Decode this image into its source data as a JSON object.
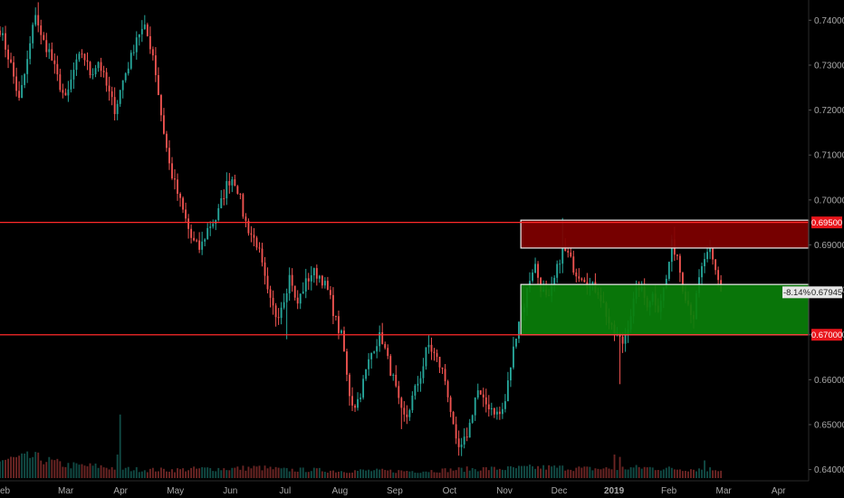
{
  "chart_data": {
    "type": "candlestick",
    "x_ticks": [
      "eb",
      "Mar",
      "Apr",
      "May",
      "Jun",
      "Jul",
      "Aug",
      "Sep",
      "Oct",
      "Nov",
      "Dec",
      "2019",
      "Feb",
      "Mar",
      "Apr"
    ],
    "y_ticks": [
      "0.74000",
      "0.73000",
      "0.72000",
      "0.71000",
      "0.70000",
      "0.69000",
      "0.68000",
      "0.67000",
      "0.66000",
      "0.65000",
      "0.64000"
    ],
    "ylim": [
      0.6375,
      0.7445
    ],
    "x_months": [
      -0.2,
      1,
      2,
      3,
      4,
      5,
      6,
      7,
      8,
      9,
      10,
      11,
      12,
      13,
      14
    ],
    "xlim": [
      -0.2,
      14.55
    ],
    "close_path": [
      [
        -0.2,
        0.738
      ],
      [
        0.0,
        0.73
      ],
      [
        0.15,
        0.722
      ],
      [
        0.3,
        0.731
      ],
      [
        0.45,
        0.742
      ],
      [
        0.55,
        0.736
      ],
      [
        0.7,
        0.733
      ],
      [
        0.85,
        0.727
      ],
      [
        1.0,
        0.722
      ],
      [
        1.15,
        0.729
      ],
      [
        1.3,
        0.733
      ],
      [
        1.45,
        0.728
      ],
      [
        1.6,
        0.731
      ],
      [
        1.75,
        0.725
      ],
      [
        1.9,
        0.72
      ],
      [
        2.05,
        0.727
      ],
      [
        2.2,
        0.732
      ],
      [
        2.3,
        0.737
      ],
      [
        2.45,
        0.738
      ],
      [
        2.6,
        0.732
      ],
      [
        2.75,
        0.718
      ],
      [
        2.9,
        0.707
      ],
      [
        3.0,
        0.703
      ],
      [
        3.15,
        0.697
      ],
      [
        3.3,
        0.691
      ],
      [
        3.45,
        0.689
      ],
      [
        3.6,
        0.694
      ],
      [
        3.75,
        0.696
      ],
      [
        3.85,
        0.7
      ],
      [
        3.95,
        0.704
      ],
      [
        4.05,
        0.705
      ],
      [
        4.15,
        0.702
      ],
      [
        4.25,
        0.696
      ],
      [
        4.35,
        0.693
      ],
      [
        4.5,
        0.69
      ],
      [
        4.6,
        0.684
      ],
      [
        4.7,
        0.678
      ],
      [
        4.85,
        0.674
      ],
      [
        5.0,
        0.679
      ],
      [
        5.1,
        0.684
      ],
      [
        5.2,
        0.676
      ],
      [
        5.35,
        0.681
      ],
      [
        5.5,
        0.684
      ],
      [
        5.65,
        0.683
      ],
      [
        5.8,
        0.679
      ],
      [
        5.95,
        0.672
      ],
      [
        6.05,
        0.669
      ],
      [
        6.15,
        0.658
      ],
      [
        6.25,
        0.654
      ],
      [
        6.35,
        0.656
      ],
      [
        6.5,
        0.663
      ],
      [
        6.6,
        0.667
      ],
      [
        6.75,
        0.67
      ],
      [
        6.9,
        0.663
      ],
      [
        7.0,
        0.659
      ],
      [
        7.1,
        0.653
      ],
      [
        7.2,
        0.651
      ],
      [
        7.35,
        0.657
      ],
      [
        7.5,
        0.662
      ],
      [
        7.6,
        0.668
      ],
      [
        7.75,
        0.665
      ],
      [
        7.9,
        0.661
      ],
      [
        8.0,
        0.655
      ],
      [
        8.1,
        0.646
      ],
      [
        8.2,
        0.644
      ],
      [
        8.35,
        0.649
      ],
      [
        8.5,
        0.658
      ],
      [
        8.6,
        0.655
      ],
      [
        8.75,
        0.654
      ],
      [
        8.9,
        0.652
      ],
      [
        9.0,
        0.654
      ],
      [
        9.1,
        0.662
      ],
      [
        9.25,
        0.673
      ],
      [
        9.35,
        0.676
      ],
      [
        9.45,
        0.682
      ],
      [
        9.55,
        0.686
      ],
      [
        9.65,
        0.681
      ],
      [
        9.8,
        0.677
      ],
      [
        9.95,
        0.684
      ],
      [
        10.05,
        0.689
      ],
      [
        10.15,
        0.688
      ],
      [
        10.3,
        0.684
      ],
      [
        10.45,
        0.683
      ],
      [
        10.55,
        0.681
      ],
      [
        10.7,
        0.68
      ],
      [
        10.8,
        0.677
      ],
      [
        10.95,
        0.671
      ],
      [
        11.05,
        0.67
      ],
      [
        11.15,
        0.668
      ],
      [
        11.25,
        0.672
      ],
      [
        11.35,
        0.677
      ],
      [
        11.45,
        0.681
      ],
      [
        11.6,
        0.677
      ],
      [
        11.7,
        0.679
      ],
      [
        11.8,
        0.676
      ],
      [
        11.95,
        0.682
      ],
      [
        12.05,
        0.69
      ],
      [
        12.15,
        0.688
      ],
      [
        12.25,
        0.681
      ],
      [
        12.35,
        0.677
      ],
      [
        12.45,
        0.674
      ],
      [
        12.55,
        0.682
      ],
      [
        12.65,
        0.687
      ],
      [
        12.75,
        0.688
      ],
      [
        12.85,
        0.684
      ],
      [
        12.95,
        0.68
      ]
    ],
    "volume_path": [
      [
        -0.2,
        0.75
      ],
      [
        0.4,
        0.9
      ],
      [
        1.0,
        0.55
      ],
      [
        1.6,
        0.5
      ],
      [
        2.0,
        0.4
      ],
      [
        2.5,
        0.35
      ],
      [
        3.0,
        0.35
      ],
      [
        3.5,
        0.4
      ],
      [
        4.0,
        0.4
      ],
      [
        4.5,
        0.45
      ],
      [
        5.0,
        0.35
      ],
      [
        5.5,
        0.35
      ],
      [
        6.0,
        0.3
      ],
      [
        6.5,
        0.32
      ],
      [
        7.0,
        0.3
      ],
      [
        7.5,
        0.3
      ],
      [
        8.0,
        0.35
      ],
      [
        8.5,
        0.4
      ],
      [
        9.0,
        0.4
      ],
      [
        9.5,
        0.45
      ],
      [
        10.0,
        0.45
      ],
      [
        10.5,
        0.4
      ],
      [
        11.0,
        0.4
      ],
      [
        11.5,
        0.45
      ],
      [
        12.0,
        0.4
      ],
      [
        12.5,
        0.38
      ],
      [
        12.95,
        0.38
      ]
    ],
    "volume_spikes": [
      [
        2.0,
        2.7
      ],
      [
        1.95,
        1.0
      ],
      [
        11.0,
        1.0
      ],
      [
        11.1,
        0.9
      ],
      [
        12.65,
        0.75
      ]
    ],
    "lows": [
      [
        11.1,
        0.659
      ],
      [
        8.2,
        0.643
      ],
      [
        5.05,
        0.669
      ],
      [
        7.1,
        0.649
      ]
    ],
    "highs": [
      [
        10.08,
        0.696
      ],
      [
        12.1,
        0.694
      ],
      [
        0.5,
        0.744
      ],
      [
        4.0,
        0.706
      ]
    ],
    "horizontal_lines": [
      0.695,
      0.67
    ],
    "zones": [
      {
        "name": "resistance",
        "y_top": 0.6955,
        "y_bottom": 0.6893,
        "x_start": 9.3,
        "fill": "#800000"
      },
      {
        "name": "support",
        "y_top": 0.6812,
        "y_bottom": 0.67,
        "x_start": 9.3,
        "fill": "#0a7f0a"
      }
    ],
    "up_color": "#26a69a",
    "down_color": "#ef5350",
    "line_color": "#ff2a2a",
    "grid": false
  },
  "price_labels": {
    "upper": "0.69500",
    "lower": "0.67000",
    "current": "0.67945",
    "change": "-8.14%"
  },
  "colors": {
    "background": "#000000",
    "axis_text": "#a8a8a8",
    "label_red": "#e8151b"
  }
}
